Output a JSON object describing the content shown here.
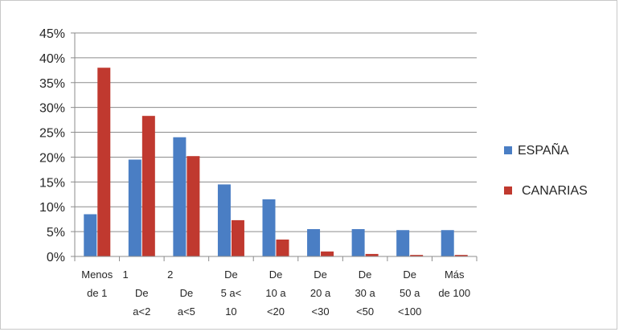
{
  "chart_data": {
    "type": "bar",
    "categories": [
      [
        "Menos",
        "de 1"
      ],
      [
        "1",
        "De",
        "a<2"
      ],
      [
        "2",
        "De",
        "a<5"
      ],
      [
        "De",
        "5 a<",
        "10"
      ],
      [
        "De",
        "10 a",
        "<20"
      ],
      [
        "De",
        "20 a",
        "<30"
      ],
      [
        "De",
        "30 a",
        "<50"
      ],
      [
        "De",
        "50 a",
        "<100"
      ],
      [
        "Más",
        "de 100"
      ]
    ],
    "series": [
      {
        "name": "ESPAÑA",
        "color": "#4a7ec4",
        "values": [
          8.5,
          19.5,
          24,
          14.5,
          11.5,
          5.5,
          5.5,
          5.3,
          5.3
        ]
      },
      {
        "name": "CANARIAS",
        "color": "#c0392f",
        "values": [
          38,
          28.3,
          20.2,
          7.3,
          3.4,
          1.0,
          0.5,
          0.3,
          0.3
        ]
      }
    ],
    "yticks": [
      "0%",
      "5%",
      "10%",
      "15%",
      "20%",
      "25%",
      "30%",
      "35%",
      "40%",
      "45%"
    ],
    "ylim": [
      0,
      45
    ],
    "ytick_step": 5,
    "grid": true,
    "legend_position": "right"
  }
}
